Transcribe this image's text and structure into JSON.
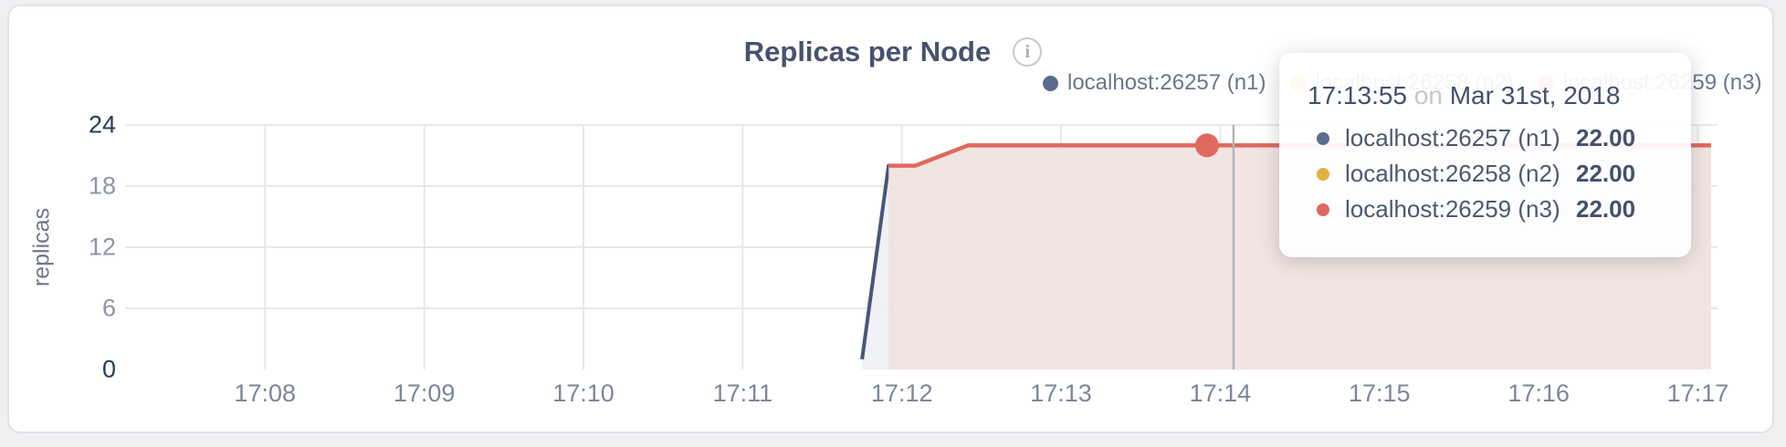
{
  "header": {
    "title": "Replicas per Node",
    "info_icon": "i"
  },
  "colors": {
    "n1": "#5b6b8f",
    "n2": "#e2b23f",
    "n3": "#e0695f",
    "n1_line": "#47567a",
    "n1_fill": "#edeff3",
    "n3_fill": "#f2e3de",
    "gridline": "#e8e8ea",
    "crosshair": "#aeb3bb",
    "title_text": "#46526e",
    "axis_major": "#2b3a57",
    "axis_minor": "#8c95a8"
  },
  "legend": {
    "items": [
      {
        "label": "localhost:26257 (n1)",
        "color": "#5b6b8f"
      },
      {
        "label": "localhost:26258 (n2)",
        "color": "#e2b23f"
      },
      {
        "label": "localhost:26259 (n3)",
        "color": "#e0695f"
      }
    ]
  },
  "chart_data": {
    "type": "area",
    "title": "Replicas per Node",
    "ylabel": "replicas",
    "ylim": [
      0,
      24
    ],
    "y_tick_labels": [
      "0",
      "6",
      "12",
      "18",
      "24"
    ],
    "x_tick_labels": [
      "17:08",
      "17:09",
      "17:10",
      "17:11",
      "17:12",
      "17:13",
      "17:14",
      "17:15",
      "17:16",
      "17:17"
    ],
    "x_domain": [
      "17:07:10",
      "17:17:05"
    ],
    "grid": true,
    "legend_position": "top-right",
    "series": [
      {
        "name": "localhost:26257 (n1)",
        "line_color": "#47567a",
        "fill_color": "#edeff3",
        "points": [
          [
            "17:11:45",
            1
          ],
          [
            "17:11:55",
            20
          ],
          [
            "17:12:05",
            20
          ],
          [
            "17:12:25",
            22
          ],
          [
            "17:17:05",
            22
          ]
        ]
      },
      {
        "name": "localhost:26258 (n2)",
        "line_color": "#e2b23f",
        "fill_color": "none",
        "points": [
          [
            "17:11:55",
            20
          ],
          [
            "17:12:05",
            20
          ],
          [
            "17:12:25",
            22
          ],
          [
            "17:17:05",
            22
          ]
        ]
      },
      {
        "name": "localhost:26259 (n3)",
        "line_color": "#e0695f",
        "fill_color": "#f2e3de",
        "points": [
          [
            "17:11:55",
            20
          ],
          [
            "17:12:05",
            20
          ],
          [
            "17:12:25",
            22
          ],
          [
            "17:17:05",
            22
          ]
        ]
      }
    ],
    "hover": {
      "crosshair_time": "17:14:05",
      "highlight": {
        "time": "17:13:55",
        "value": 22,
        "series": "localhost:26259 (n3)",
        "color": "#e0695f"
      }
    }
  },
  "tooltip": {
    "time": "17:13:55",
    "conjunction": "on",
    "date": "Mar 31st, 2018",
    "rows": [
      {
        "label": "localhost:26257 (n1)",
        "value": "22.00",
        "color": "#5b6b8f"
      },
      {
        "label": "localhost:26258 (n2)",
        "value": "22.00",
        "color": "#e2b23f"
      },
      {
        "label": "localhost:26259 (n3)",
        "value": "22.00",
        "color": "#e0695f"
      }
    ]
  }
}
